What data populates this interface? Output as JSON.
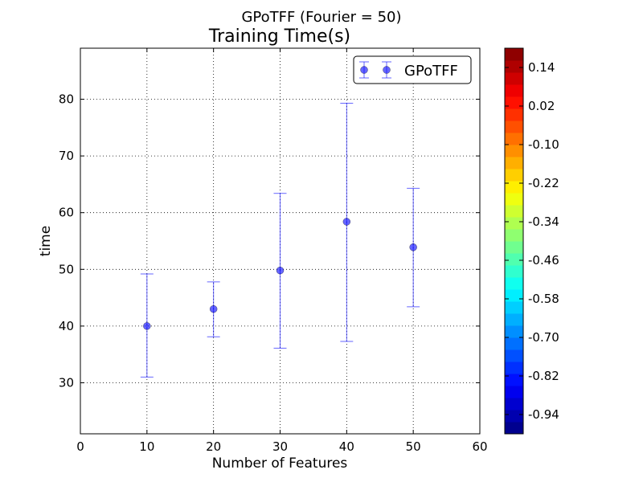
{
  "chart_data": {
    "type": "scatter",
    "suptitle": "GPoTFF (Fourier = 50)",
    "title": "Training Time(s)",
    "xlabel": "Number of Features",
    "ylabel": "time",
    "xlim": [
      0,
      60
    ],
    "ylim": [
      21,
      89
    ],
    "xticks": [
      0,
      10,
      20,
      30,
      40,
      50,
      60
    ],
    "yticks": [
      30,
      40,
      50,
      60,
      70,
      80
    ],
    "grid": true,
    "legend_position": "top-right",
    "series": [
      {
        "name": "GPoTFF",
        "color": "#0000ff",
        "marker": "circle",
        "error_bars": true,
        "x": [
          10,
          20,
          30,
          40,
          50
        ],
        "y": [
          40.0,
          43.0,
          49.8,
          58.4,
          53.9
        ],
        "err_low": [
          31.0,
          38.1,
          36.1,
          37.3,
          43.4
        ],
        "err_high": [
          49.2,
          47.8,
          63.4,
          79.3,
          64.3
        ]
      }
    ],
    "colorbar": {
      "colormap": "jet",
      "ticks": [
        "0.14",
        "0.02",
        "-0.10",
        "-0.22",
        "-0.34",
        "-0.46",
        "-0.58",
        "-0.70",
        "-0.82",
        "-0.94"
      ]
    }
  }
}
